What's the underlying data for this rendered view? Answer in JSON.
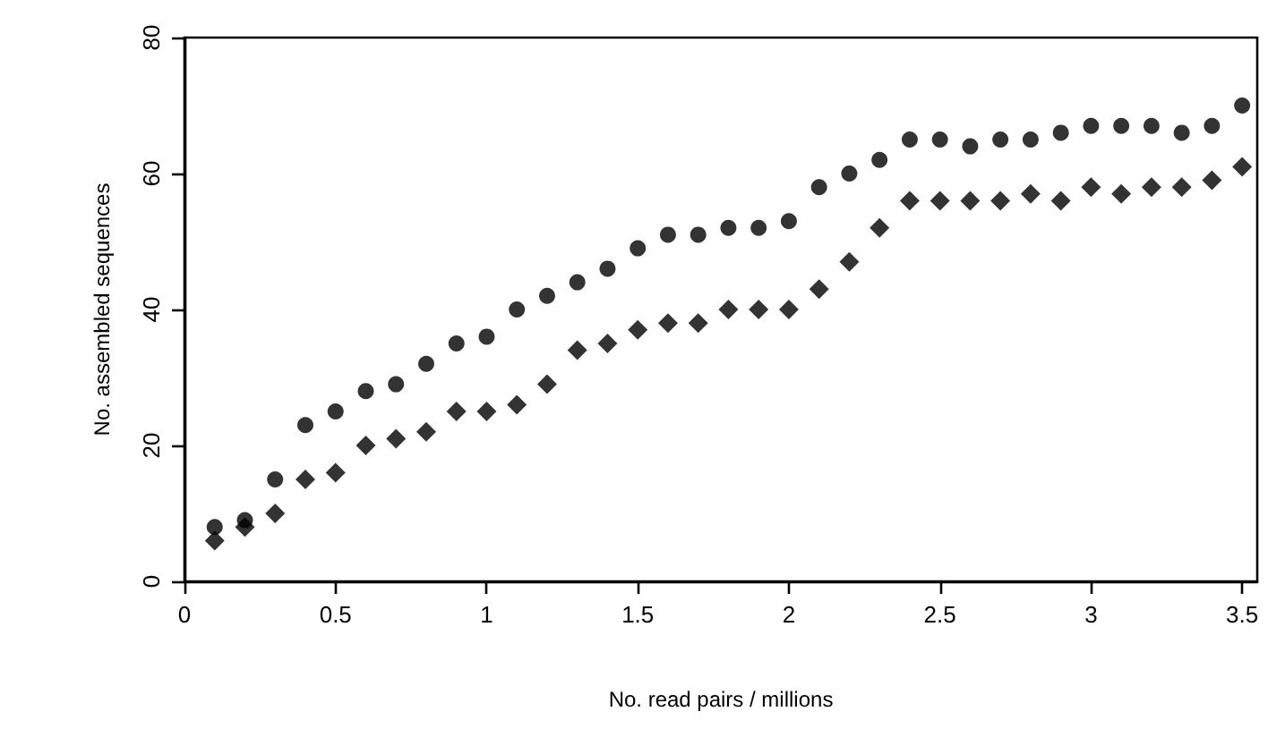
{
  "chart_data": {
    "type": "scatter",
    "xlabel": "No. read pairs / millions",
    "ylabel": "No. assembled sequences",
    "x": [
      0.1,
      0.2,
      0.3,
      0.4,
      0.5,
      0.6,
      0.7,
      0.8,
      0.9,
      1.0,
      1.1,
      1.2,
      1.3,
      1.4,
      1.5,
      1.6,
      1.7,
      1.8,
      1.9,
      2.0,
      2.1,
      2.2,
      2.3,
      2.4,
      2.5,
      2.6,
      2.7,
      2.8,
      2.9,
      3.0,
      3.1,
      3.2,
      3.3,
      3.4,
      3.5
    ],
    "series": [
      {
        "color": "#000000",
        "marker": "circle",
        "values": [
          8,
          9,
          15,
          23,
          25,
          28,
          29,
          32,
          35,
          36,
          40,
          42,
          44,
          46,
          49,
          51,
          51,
          52,
          52,
          53,
          58,
          60,
          62,
          65,
          65,
          64,
          65,
          65,
          66,
          67,
          67,
          67,
          66,
          67,
          70
        ]
      },
      {
        "color": "#000000",
        "marker": "diamond",
        "values": [
          6,
          8,
          10,
          15,
          16,
          20,
          21,
          22,
          25,
          25,
          26,
          29,
          34,
          35,
          37,
          38,
          38,
          40,
          40,
          40,
          43,
          47,
          52,
          56,
          56,
          56,
          56,
          57,
          56,
          58,
          57,
          58,
          58,
          59,
          61
        ]
      }
    ],
    "xlim": [
      0,
      3.55
    ],
    "xticks": [
      0,
      0.5,
      1,
      1.5,
      2,
      2.5,
      3,
      3.5
    ],
    "ylim": [
      0,
      80
    ],
    "yticks": [
      0,
      20,
      40,
      60,
      80
    ]
  }
}
